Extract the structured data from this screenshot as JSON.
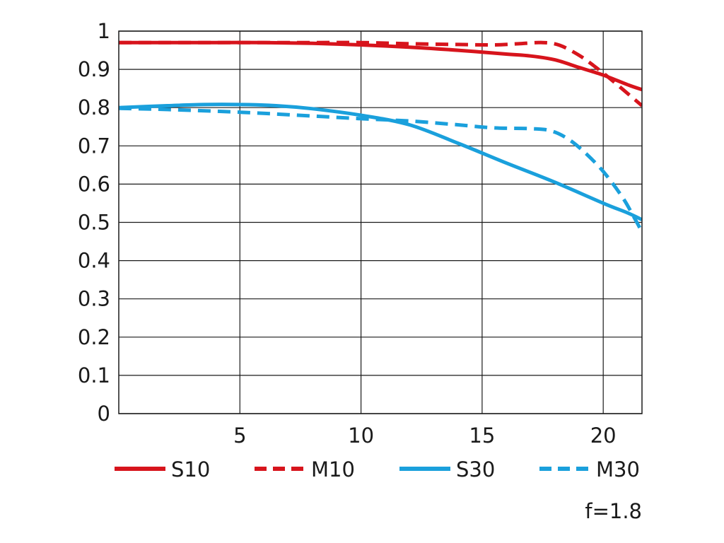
{
  "chart_data": {
    "type": "line",
    "title": "",
    "xlabel": "",
    "ylabel": "",
    "xlim": [
      0,
      21.6
    ],
    "ylim": [
      0,
      1
    ],
    "grid": true,
    "legend_position": "bottom",
    "x_ticks": [
      5,
      10,
      15,
      20
    ],
    "x_tick_labels": [
      "5",
      "10",
      "15",
      "20"
    ],
    "y_ticks": [
      0,
      0.1,
      0.2,
      0.3,
      0.4,
      0.5,
      0.6,
      0.7,
      0.8,
      0.9,
      1
    ],
    "y_tick_labels": [
      "0",
      "0.1",
      "0.2",
      "0.3",
      "0.4",
      "0.5",
      "0.6",
      "0.7",
      "0.8",
      "0.9",
      "1"
    ],
    "series": [
      {
        "name": "S10",
        "color": "#d7141c",
        "dashed": false,
        "points": [
          [
            0,
            0.97
          ],
          [
            2,
            0.97
          ],
          [
            4,
            0.97
          ],
          [
            6,
            0.97
          ],
          [
            8,
            0.968
          ],
          [
            10,
            0.964
          ],
          [
            12,
            0.958
          ],
          [
            14,
            0.95
          ],
          [
            16,
            0.94
          ],
          [
            17,
            0.935
          ],
          [
            18,
            0.925
          ],
          [
            19,
            0.905
          ],
          [
            20,
            0.885
          ],
          [
            21,
            0.86
          ],
          [
            21.6,
            0.847
          ]
        ]
      },
      {
        "name": "M10",
        "color": "#d7141c",
        "dashed": true,
        "points": [
          [
            0,
            0.97
          ],
          [
            4,
            0.97
          ],
          [
            8,
            0.97
          ],
          [
            10,
            0.97
          ],
          [
            12,
            0.967
          ],
          [
            14,
            0.965
          ],
          [
            15.5,
            0.964
          ],
          [
            16.5,
            0.967
          ],
          [
            17.5,
            0.97
          ],
          [
            18.2,
            0.963
          ],
          [
            19,
            0.937
          ],
          [
            19.6,
            0.91
          ],
          [
            20.2,
            0.88
          ],
          [
            20.8,
            0.848
          ],
          [
            21.6,
            0.805
          ]
        ]
      },
      {
        "name": "S30",
        "color": "#1aa0dc",
        "dashed": false,
        "points": [
          [
            0,
            0.8
          ],
          [
            2,
            0.805
          ],
          [
            3.5,
            0.808
          ],
          [
            5,
            0.808
          ],
          [
            6.5,
            0.805
          ],
          [
            8,
            0.797
          ],
          [
            10,
            0.78
          ],
          [
            12,
            0.755
          ],
          [
            14,
            0.707
          ],
          [
            16,
            0.655
          ],
          [
            18,
            0.605
          ],
          [
            20,
            0.55
          ],
          [
            21,
            0.525
          ],
          [
            21.6,
            0.507
          ]
        ]
      },
      {
        "name": "M30",
        "color": "#1aa0dc",
        "dashed": true,
        "points": [
          [
            0,
            0.798
          ],
          [
            2,
            0.795
          ],
          [
            5,
            0.788
          ],
          [
            8,
            0.778
          ],
          [
            10,
            0.771
          ],
          [
            12,
            0.765
          ],
          [
            14,
            0.755
          ],
          [
            15.5,
            0.747
          ],
          [
            17,
            0.745
          ],
          [
            17.8,
            0.74
          ],
          [
            18.5,
            0.72
          ],
          [
            19.2,
            0.685
          ],
          [
            20,
            0.633
          ],
          [
            20.8,
            0.565
          ],
          [
            21.3,
            0.51
          ],
          [
            21.6,
            0.475
          ]
        ]
      }
    ],
    "annotation": "f=1.8"
  }
}
